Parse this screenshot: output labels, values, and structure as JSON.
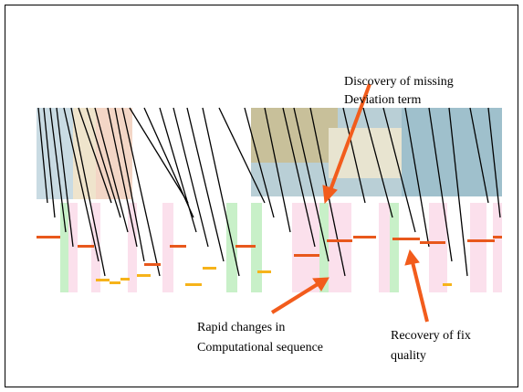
{
  "annotations": [
    {
      "lines": [
        "Discovery of missing",
        "Deviation term"
      ]
    },
    {
      "lines": [
        "Rapid changes in",
        "Computational sequence"
      ]
    },
    {
      "lines": [
        "Recovery of fix",
        "quality"
      ]
    }
  ]
}
